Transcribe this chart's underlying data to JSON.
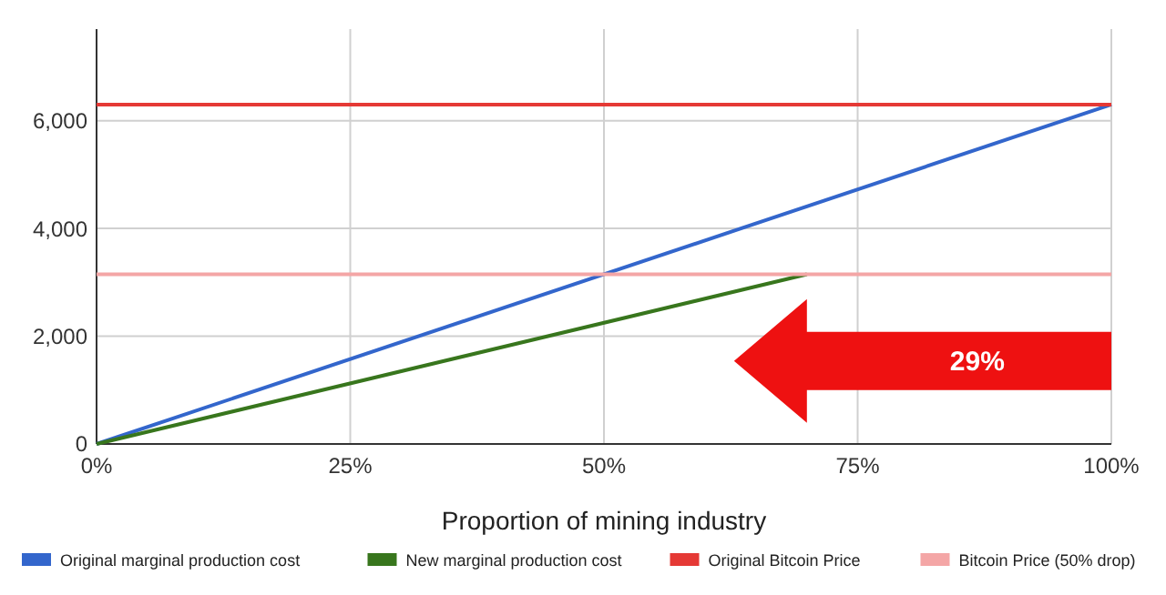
{
  "chart_data": {
    "type": "line",
    "xlabel": "Proportion of mining industry",
    "xlim": [
      0,
      100
    ],
    "xticks": [
      {
        "value": 0,
        "label": "0%"
      },
      {
        "value": 25,
        "label": "25%"
      },
      {
        "value": 50,
        "label": "50%"
      },
      {
        "value": 75,
        "label": "75%"
      },
      {
        "value": 100,
        "label": "100%"
      }
    ],
    "ylim": [
      0,
      7700
    ],
    "yticks": [
      {
        "value": 0,
        "label": "0"
      },
      {
        "value": 2000,
        "label": "2,000"
      },
      {
        "value": 4000,
        "label": "4,000"
      },
      {
        "value": 6000,
        "label": "6,000"
      }
    ],
    "grid": true,
    "legend": "bottom",
    "marker": "none",
    "line_style": "solid",
    "series": [
      {
        "name": "Original marginal production cost",
        "color": "#3366cc",
        "x": [
          0,
          100
        ],
        "values": [
          0,
          6300
        ]
      },
      {
        "name": "New marginal production cost",
        "color": "#38761d",
        "x": [
          0,
          70
        ],
        "values": [
          0,
          3150
        ]
      },
      {
        "name": "Original Bitcoin Price",
        "color": "#e53935",
        "x": [
          0,
          100
        ],
        "values": [
          6300,
          6300
        ]
      },
      {
        "name": "Bitcoin Price (50% drop)",
        "color": "#f4a6a6",
        "x": [
          0,
          100
        ],
        "values": [
          3150,
          3150
        ]
      }
    ],
    "annotations": [
      "29%"
    ]
  }
}
